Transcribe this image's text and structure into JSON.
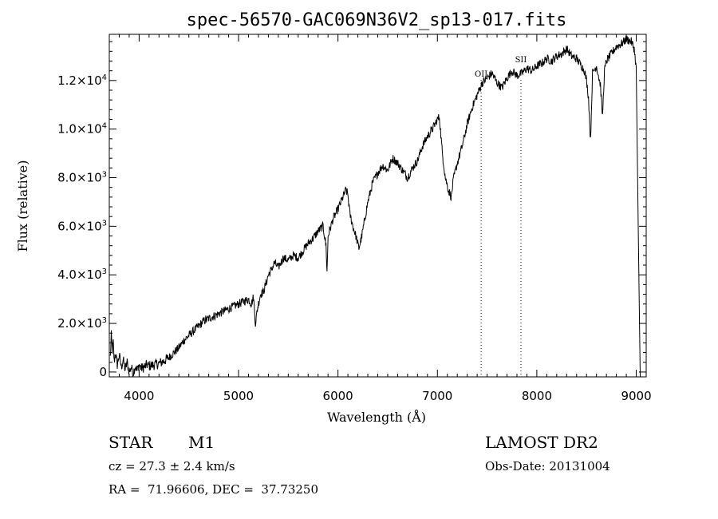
{
  "chart_data": {
    "type": "line",
    "title": "spec-56570-GAC069N36V2_sp13-017.fits",
    "xlabel": "Wavelength (Å)",
    "ylabel": "Flux (relative)",
    "xlim": [
      3700,
      9100
    ],
    "ylim": [
      -200,
      13900
    ],
    "x_ticks": [
      4000,
      5000,
      6000,
      7000,
      8000,
      9000
    ],
    "x_tick_labels": [
      "4000",
      "5000",
      "6000",
      "7000",
      "8000",
      "9000"
    ],
    "y_ticks": [
      0,
      2000,
      4000,
      6000,
      8000,
      10000,
      12000
    ],
    "y_tick_labels": [
      {
        "mant": "0",
        "exp": ""
      },
      {
        "mant": "2.0×10",
        "exp": "3"
      },
      {
        "mant": "4.0×10",
        "exp": "3"
      },
      {
        "mant": "6.0×10",
        "exp": "3"
      },
      {
        "mant": "8.0×10",
        "exp": "3"
      },
      {
        "mant": "1.0×10",
        "exp": "4"
      },
      {
        "mant": "1.2×10",
        "exp": "4"
      }
    ],
    "line_markers": [
      {
        "label": "OII",
        "x": 7440
      },
      {
        "label": "SII",
        "x": 7840
      }
    ],
    "series": [
      {
        "values": [
          [
            3710,
            600
          ],
          [
            3720,
            1500
          ],
          [
            3730,
            900
          ],
          [
            3740,
            1200
          ],
          [
            3750,
            400
          ],
          [
            3760,
            800
          ],
          [
            3780,
            300
          ],
          [
            3800,
            700
          ],
          [
            3820,
            200
          ],
          [
            3840,
            500
          ],
          [
            3860,
            100
          ],
          [
            3880,
            400
          ],
          [
            3900,
            0
          ],
          [
            3920,
            200
          ],
          [
            3940,
            -50
          ],
          [
            3960,
            250
          ],
          [
            3980,
            50
          ],
          [
            4000,
            300
          ],
          [
            4020,
            150
          ],
          [
            4050,
            200
          ],
          [
            4080,
            300
          ],
          [
            4100,
            250
          ],
          [
            4150,
            300
          ],
          [
            4200,
            350
          ],
          [
            4250,
            450
          ],
          [
            4300,
            600
          ],
          [
            4350,
            800
          ],
          [
            4400,
            1000
          ],
          [
            4450,
            1300
          ],
          [
            4500,
            1500
          ],
          [
            4550,
            1700
          ],
          [
            4600,
            1900
          ],
          [
            4650,
            2100
          ],
          [
            4700,
            2200
          ],
          [
            4750,
            2300
          ],
          [
            4800,
            2400
          ],
          [
            4850,
            2500
          ],
          [
            4900,
            2600
          ],
          [
            4950,
            2700
          ],
          [
            5000,
            2800
          ],
          [
            5050,
            2900
          ],
          [
            5100,
            3000
          ],
          [
            5130,
            2800
          ],
          [
            5150,
            3100
          ],
          [
            5170,
            2000
          ],
          [
            5190,
            2600
          ],
          [
            5220,
            3200
          ],
          [
            5250,
            3300
          ],
          [
            5280,
            3700
          ],
          [
            5300,
            4000
          ],
          [
            5330,
            4200
          ],
          [
            5360,
            4500
          ],
          [
            5400,
            4300
          ],
          [
            5450,
            4700
          ],
          [
            5500,
            4600
          ],
          [
            5550,
            4800
          ],
          [
            5600,
            4700
          ],
          [
            5650,
            5000
          ],
          [
            5700,
            5300
          ],
          [
            5750,
            5500
          ],
          [
            5800,
            5800
          ],
          [
            5850,
            6000
          ],
          [
            5880,
            5200
          ],
          [
            5890,
            4100
          ],
          [
            5900,
            5600
          ],
          [
            5950,
            6300
          ],
          [
            6000,
            6700
          ],
          [
            6050,
            7200
          ],
          [
            6080,
            7500
          ],
          [
            6100,
            7300
          ],
          [
            6120,
            6500
          ],
          [
            6150,
            6000
          ],
          [
            6180,
            5600
          ],
          [
            6210,
            5100
          ],
          [
            6240,
            5600
          ],
          [
            6270,
            6300
          ],
          [
            6300,
            7000
          ],
          [
            6350,
            7800
          ],
          [
            6400,
            8200
          ],
          [
            6450,
            8500
          ],
          [
            6500,
            8300
          ],
          [
            6550,
            8800
          ],
          [
            6600,
            8600
          ],
          [
            6650,
            8300
          ],
          [
            6700,
            8000
          ],
          [
            6750,
            8400
          ],
          [
            6800,
            8700
          ],
          [
            6850,
            9300
          ],
          [
            6900,
            9700
          ],
          [
            6950,
            10000
          ],
          [
            7000,
            10400
          ],
          [
            7020,
            10500
          ],
          [
            7050,
            9000
          ],
          [
            7080,
            8000
          ],
          [
            7110,
            7500
          ],
          [
            7140,
            7200
          ],
          [
            7160,
            7900
          ],
          [
            7200,
            8600
          ],
          [
            7250,
            9300
          ],
          [
            7300,
            10200
          ],
          [
            7350,
            10900
          ],
          [
            7400,
            11400
          ],
          [
            7450,
            11900
          ],
          [
            7500,
            12100
          ],
          [
            7550,
            12300
          ],
          [
            7600,
            11900
          ],
          [
            7650,
            11700
          ],
          [
            7700,
            12100
          ],
          [
            7750,
            12400
          ],
          [
            7800,
            12200
          ],
          [
            7850,
            12300
          ],
          [
            7900,
            12500
          ],
          [
            7950,
            12400
          ],
          [
            8000,
            12600
          ],
          [
            8050,
            12700
          ],
          [
            8100,
            12900
          ],
          [
            8150,
            12800
          ],
          [
            8200,
            13000
          ],
          [
            8250,
            13100
          ],
          [
            8300,
            13300
          ],
          [
            8350,
            13000
          ],
          [
            8400,
            12900
          ],
          [
            8450,
            12600
          ],
          [
            8480,
            12400
          ],
          [
            8500,
            12000
          ],
          [
            8520,
            11300
          ],
          [
            8540,
            9500
          ],
          [
            8560,
            12300
          ],
          [
            8600,
            12600
          ],
          [
            8640,
            11800
          ],
          [
            8660,
            10500
          ],
          [
            8680,
            12400
          ],
          [
            8700,
            12800
          ],
          [
            8750,
            13100
          ],
          [
            8800,
            13400
          ],
          [
            8850,
            13500
          ],
          [
            8900,
            13700
          ],
          [
            8950,
            13600
          ],
          [
            8980,
            13300
          ],
          [
            9000,
            12500
          ],
          [
            9020,
            6000
          ],
          [
            9040,
            -200
          ]
        ]
      }
    ]
  },
  "info": {
    "object_type": "STAR",
    "subclass": "M1",
    "cz": "cz = 27.3 ± 2.4 km/s",
    "coords": "RA =  71.96606, DEC =  37.73250",
    "survey": "LAMOST DR2",
    "obs_date": "Obs-Date: 20131004"
  }
}
